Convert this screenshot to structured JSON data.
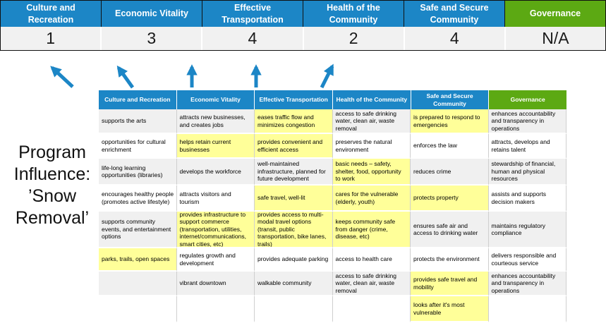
{
  "title_block": {
    "program_influence_label": "Program\nInfluence:\n’Snow\nRemoval’"
  },
  "colors": {
    "header_blue": "#1C86C6",
    "header_green": "#5CA913",
    "highlight_yellow": "#FFFF99",
    "row_gray": "#F0F0F0",
    "arrow_blue": "#1C86C6"
  },
  "summary": {
    "items": [
      {
        "category": "Culture and Recreation",
        "score": "1",
        "color": "blue"
      },
      {
        "category": "Economic Vitality",
        "score": "3",
        "color": "blue"
      },
      {
        "category": "Effective Transportation",
        "score": "4",
        "color": "blue"
      },
      {
        "category": "Health of the Community",
        "score": "2",
        "color": "blue"
      },
      {
        "category": "Safe and Secure Community",
        "score": "4",
        "color": "blue"
      },
      {
        "category": "Governance",
        "score": "N/A",
        "color": "green"
      }
    ]
  },
  "matrix": {
    "headers": [
      {
        "label": "Culture and Recreation",
        "color": "blue"
      },
      {
        "label": "Economic Vitality",
        "color": "blue"
      },
      {
        "label": "Effective Transportation",
        "color": "blue"
      },
      {
        "label": "Health of the Community",
        "color": "blue"
      },
      {
        "label": "Safe and Secure Community",
        "color": "green_no",
        "color2": "blue"
      },
      {
        "label": "Governance",
        "color": "green"
      }
    ],
    "rows": [
      {
        "cells": [
          {
            "text": "supports the arts",
            "hl": false
          },
          {
            "text": "attracts new businesses, and creates jobs",
            "hl": false
          },
          {
            "text": "eases traffic flow and minimizes congestion",
            "hl": true
          },
          {
            "text": "access to safe drinking water, clean air, waste removal",
            "hl": false
          },
          {
            "text": "is prepared to respond to emergencies",
            "hl": true
          },
          {
            "text": "enhances accountability and transparency in operations",
            "hl": false
          }
        ]
      },
      {
        "cells": [
          {
            "text": "opportunities for cultural enrichment",
            "hl": false
          },
          {
            "text": "helps retain current businesses",
            "hl": true
          },
          {
            "text": "provides convenient and efficient access",
            "hl": true
          },
          {
            "text": "preserves the natural environment",
            "hl": false
          },
          {
            "text": "enforces the law",
            "hl": false
          },
          {
            "text": "attracts, develops and retains talent",
            "hl": false
          }
        ]
      },
      {
        "cells": [
          {
            "text": "life-long learning opportunities (libraries)",
            "hl": false
          },
          {
            "text": "develops the workforce",
            "hl": false
          },
          {
            "text": "well-maintained infrastructure, planned for future development",
            "hl": false
          },
          {
            "text": "basic needs – safety, shelter, food, opportunity to work",
            "hl": true
          },
          {
            "text": "reduces crime",
            "hl": false
          },
          {
            "text": "stewardship of financial, human and physical resources",
            "hl": false
          }
        ]
      },
      {
        "cells": [
          {
            "text": "encourages healthy people (promotes active lifestyle)",
            "hl": false
          },
          {
            "text": "attracts visitors and tourism",
            "hl": false
          },
          {
            "text": "safe travel, well-lit",
            "hl": true
          },
          {
            "text": "cares for the vulnerable (elderly, youth)",
            "hl": true
          },
          {
            "text": "protects property",
            "hl": true
          },
          {
            "text": "assists and supports decision makers",
            "hl": false
          }
        ]
      },
      {
        "cells": [
          {
            "text": "supports community events, and entertainment options",
            "hl": false
          },
          {
            "text": "provides infrastructure to support commerce (transportation, utilities, internet/communications, smart cities, etc)",
            "hl": true
          },
          {
            "text": "provides access to multi-modal travel options (transit, public transportation, bike lanes, trails)",
            "hl": true
          },
          {
            "text": "keeps community safe from danger (crime, disease, etc)",
            "hl": true
          },
          {
            "text": "ensures safe air and access to drinking water",
            "hl": false
          },
          {
            "text": "maintains regulatory compliance",
            "hl": false
          }
        ]
      },
      {
        "cells": [
          {
            "text": "parks, trails, open spaces",
            "hl": true
          },
          {
            "text": "regulates growth and development",
            "hl": false
          },
          {
            "text": "provides adequate parking",
            "hl": false
          },
          {
            "text": "access to health care",
            "hl": false
          },
          {
            "text": "protects the environment",
            "hl": false
          },
          {
            "text": "delivers responsible and courteous service",
            "hl": false
          }
        ]
      },
      {
        "cells": [
          {
            "text": "",
            "hl": false
          },
          {
            "text": "vibrant downtown",
            "hl": false
          },
          {
            "text": "walkable community",
            "hl": false
          },
          {
            "text": "access to safe drinking water, clean air, waste removal",
            "hl": false
          },
          {
            "text": "provides safe travel and mobility",
            "hl": true
          },
          {
            "text": "enhances accountability and transparency in operations",
            "hl": false
          }
        ]
      },
      {
        "cells": [
          {
            "text": "",
            "hl": false
          },
          {
            "text": "",
            "hl": false
          },
          {
            "text": "",
            "hl": false
          },
          {
            "text": "",
            "hl": false
          },
          {
            "text": "looks after it's most vulnerable",
            "hl": true
          },
          {
            "text": "",
            "hl": false
          }
        ]
      }
    ]
  }
}
